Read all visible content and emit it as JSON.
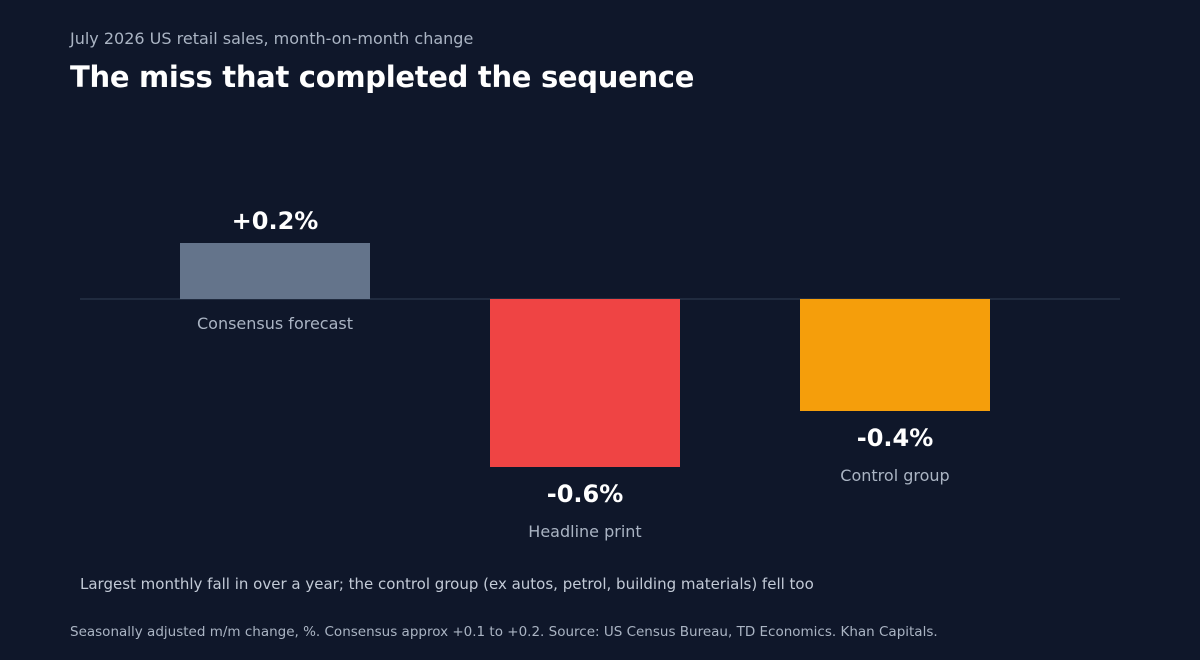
{
  "header": {
    "subtitle": "July 2026 US retail sales, month-on-month change",
    "title": "The miss that completed the sequence"
  },
  "chart_data": {
    "type": "bar",
    "categories": [
      "Consensus forecast",
      "Headline print",
      "Control group"
    ],
    "values": [
      0.2,
      -0.6,
      -0.4
    ],
    "value_labels": [
      "+0.2%",
      "-0.6%",
      "-0.4%"
    ],
    "colors": [
      "#64748b",
      "#ef4444",
      "#f59e0b"
    ],
    "unit": "%",
    "grid": false,
    "legend": "none"
  },
  "footer": {
    "note": "Largest monthly fall in over a year; the control group (ex autos, petrol, building materials) fell too",
    "source": "Seasonally adjusted m/m change, %. Consensus approx +0.1 to +0.2. Source: US Census Bureau, TD Economics. Khan Capitals."
  },
  "colors": {
    "background": "#0f172a",
    "baseline": "#273246",
    "value_text": "#ffffff",
    "category_text": "#aab4c3"
  }
}
